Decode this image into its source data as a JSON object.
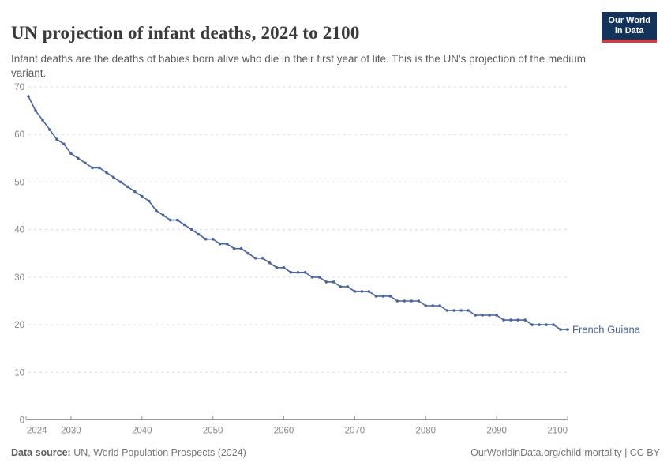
{
  "header": {
    "title": "UN projection of infant deaths, 2024 to 2100",
    "subtitle": "Infant deaths are the deaths of babies born alive who die in their first year of life. This is the UN's projection of the medium variant.",
    "logo": {
      "line1": "Our World",
      "line2": "in Data",
      "bg_color": "#13335a",
      "accent_color": "#d23a45"
    }
  },
  "chart_data": {
    "type": "line",
    "title": "UN projection of infant deaths, 2024 to 2100",
    "xlabel": "",
    "ylabel": "",
    "xlim": [
      2024,
      2100
    ],
    "ylim": [
      0,
      70
    ],
    "x_ticks": [
      2024,
      2030,
      2040,
      2050,
      2060,
      2070,
      2080,
      2090,
      2100
    ],
    "y_ticks": [
      0,
      10,
      20,
      30,
      40,
      50,
      60,
      70
    ],
    "grid": "horizontal-dashed",
    "legend_position": "end-of-line-label",
    "x_start": 2024,
    "x_step": 1,
    "series": [
      {
        "name": "French Guiana",
        "color": "#4465a5",
        "values": [
          68,
          65,
          63,
          61,
          59,
          58,
          56,
          55,
          54,
          53,
          53,
          52,
          51,
          50,
          49,
          48,
          47,
          46,
          44,
          43,
          42,
          42,
          41,
          40,
          39,
          38,
          38,
          37,
          37,
          36,
          36,
          35,
          34,
          34,
          33,
          32,
          32,
          31,
          31,
          31,
          30,
          30,
          29,
          29,
          28,
          28,
          27,
          27,
          27,
          26,
          26,
          26,
          25,
          25,
          25,
          25,
          24,
          24,
          24,
          23,
          23,
          23,
          23,
          22,
          22,
          22,
          22,
          21,
          21,
          21,
          21,
          20,
          20,
          20,
          20,
          19,
          19
        ]
      }
    ],
    "colors": {
      "gridline": "#dadada",
      "axis": "#999999",
      "tick_label": "#878787"
    }
  },
  "footer": {
    "source_label": "Data source:",
    "source_text": " UN, World Population Prospects (2024)",
    "credit": "OurWorldinData.org/child-mortality | CC BY"
  }
}
